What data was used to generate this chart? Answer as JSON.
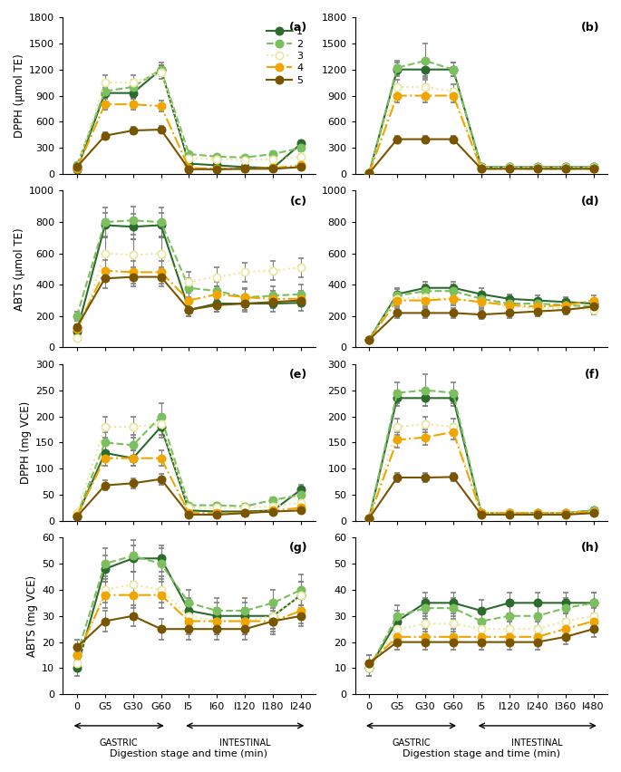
{
  "colors": {
    "1": "#2d6a2d",
    "2": "#7bbf5e",
    "3": "#e8e8a0",
    "4": "#f0a500",
    "5": "#7a5500"
  },
  "linestyles": {
    "1": "-",
    "2": "--",
    "3": ":",
    "4": "-.",
    "5": "-"
  },
  "xlabels_left": [
    "0",
    "G5",
    "G30",
    "G60",
    "I5",
    "I60",
    "I120",
    "I180",
    "I240"
  ],
  "xlabels_right": [
    "0",
    "G5",
    "G30",
    "G60",
    "I5",
    "I120",
    "I240",
    "I360",
    "I480"
  ],
  "panel_a": {
    "label": "(a)",
    "ylim": [
      0,
      1800
    ],
    "yticks": [
      0,
      300,
      600,
      900,
      1200,
      1500,
      1800
    ],
    "ylabel": "DPPH (μmol TE)",
    "series": {
      "1": [
        50,
        930,
        930,
        1200,
        120,
        100,
        80,
        70,
        350
      ],
      "2": [
        100,
        950,
        1000,
        1200,
        230,
        200,
        190,
        230,
        300
      ],
      "3": [
        70,
        1050,
        1050,
        1170,
        180,
        170,
        160,
        170,
        200
      ],
      "4": [
        60,
        800,
        800,
        780,
        70,
        60,
        60,
        70,
        100
      ],
      "5": [
        80,
        440,
        500,
        510,
        55,
        55,
        60,
        60,
        80
      ]
    },
    "errors": {
      "1": [
        10,
        60,
        60,
        50,
        15,
        10,
        10,
        10,
        40
      ],
      "2": [
        15,
        50,
        80,
        80,
        30,
        20,
        20,
        30,
        40
      ],
      "3": [
        15,
        80,
        80,
        80,
        20,
        20,
        20,
        20,
        30
      ],
      "4": [
        10,
        60,
        60,
        60,
        10,
        10,
        10,
        10,
        15
      ],
      "5": [
        10,
        40,
        40,
        40,
        10,
        10,
        10,
        10,
        15
      ]
    }
  },
  "panel_b": {
    "label": "(b)",
    "ylim": [
      0,
      1800
    ],
    "yticks": [
      0,
      300,
      600,
      900,
      1200,
      1500,
      1800
    ],
    "ylabel": "",
    "series": {
      "1": [
        10,
        1200,
        1200,
        1200,
        80,
        80,
        80,
        80,
        80
      ],
      "2": [
        10,
        1220,
        1300,
        1200,
        80,
        80,
        80,
        80,
        80
      ],
      "3": [
        10,
        1000,
        1000,
        950,
        70,
        70,
        70,
        70,
        70
      ],
      "4": [
        10,
        900,
        900,
        900,
        60,
        60,
        60,
        60,
        60
      ],
      "5": [
        10,
        400,
        400,
        400,
        60,
        60,
        60,
        60,
        60
      ]
    },
    "errors": {
      "1": [
        5,
        80,
        80,
        80,
        10,
        10,
        10,
        10,
        10
      ],
      "2": [
        5,
        80,
        200,
        80,
        10,
        10,
        10,
        10,
        10
      ],
      "3": [
        5,
        80,
        80,
        80,
        10,
        10,
        10,
        10,
        10
      ],
      "4": [
        5,
        80,
        80,
        80,
        10,
        10,
        10,
        10,
        10
      ],
      "5": [
        5,
        40,
        40,
        40,
        10,
        10,
        10,
        10,
        10
      ]
    }
  },
  "panel_c": {
    "label": "(c)",
    "ylim": [
      0,
      1000
    ],
    "yticks": [
      0,
      200,
      400,
      600,
      800,
      1000
    ],
    "ylabel": "ABTS (μmol TE)",
    "series": {
      "1": [
        100,
        780,
        770,
        780,
        240,
        280,
        280,
        280,
        285
      ],
      "2": [
        200,
        800,
        810,
        800,
        380,
        360,
        320,
        330,
        340
      ],
      "3": [
        60,
        600,
        590,
        600,
        420,
        450,
        480,
        490,
        510
      ],
      "4": [
        120,
        490,
        480,
        480,
        300,
        340,
        320,
        310,
        310
      ],
      "5": [
        130,
        440,
        450,
        450,
        240,
        270,
        280,
        290,
        300
      ]
    },
    "errors": {
      "1": [
        20,
        80,
        80,
        80,
        40,
        50,
        50,
        50,
        50
      ],
      "2": [
        30,
        90,
        90,
        90,
        60,
        60,
        60,
        60,
        60
      ],
      "3": [
        15,
        100,
        100,
        100,
        60,
        60,
        60,
        60,
        60
      ],
      "4": [
        20,
        70,
        70,
        70,
        50,
        50,
        50,
        50,
        50
      ],
      "5": [
        20,
        60,
        60,
        60,
        40,
        40,
        40,
        40,
        40
      ]
    }
  },
  "panel_d": {
    "label": "(d)",
    "ylim": [
      0,
      1000
    ],
    "yticks": [
      0,
      200,
      400,
      600,
      800,
      1000
    ],
    "ylabel": "",
    "series": {
      "1": [
        50,
        340,
        380,
        380,
        340,
        310,
        300,
        290,
        280
      ],
      "2": [
        50,
        330,
        360,
        360,
        310,
        280,
        280,
        270,
        260
      ],
      "3": [
        50,
        310,
        320,
        310,
        290,
        260,
        250,
        250,
        240
      ],
      "4": [
        50,
        300,
        300,
        310,
        290,
        270,
        260,
        270,
        300
      ],
      "5": [
        50,
        220,
        220,
        220,
        210,
        220,
        230,
        240,
        260
      ]
    },
    "errors": {
      "1": [
        10,
        40,
        40,
        40,
        40,
        30,
        30,
        30,
        30
      ],
      "2": [
        10,
        40,
        40,
        40,
        40,
        30,
        30,
        30,
        30
      ],
      "3": [
        10,
        30,
        30,
        30,
        30,
        30,
        30,
        30,
        30
      ],
      "4": [
        10,
        40,
        40,
        40,
        40,
        30,
        30,
        30,
        30
      ],
      "5": [
        10,
        30,
        30,
        30,
        30,
        30,
        30,
        30,
        30
      ]
    }
  },
  "panel_e": {
    "label": "(e)",
    "ylim": [
      0,
      300
    ],
    "yticks": [
      0,
      50,
      100,
      150,
      200,
      250,
      300
    ],
    "ylabel": "DPPH (mg VCE)",
    "series": {
      "1": [
        8,
        130,
        120,
        180,
        20,
        18,
        18,
        20,
        60
      ],
      "2": [
        10,
        150,
        145,
        200,
        30,
        30,
        28,
        40,
        50
      ],
      "3": [
        15,
        180,
        180,
        185,
        25,
        25,
        25,
        28,
        35
      ],
      "4": [
        10,
        120,
        120,
        120,
        15,
        15,
        15,
        20,
        25
      ],
      "5": [
        8,
        68,
        72,
        80,
        12,
        12,
        15,
        18,
        20
      ]
    },
    "errors": {
      "1": [
        3,
        15,
        15,
        20,
        5,
        5,
        5,
        5,
        10
      ],
      "2": [
        3,
        20,
        20,
        25,
        5,
        5,
        5,
        5,
        8
      ],
      "3": [
        3,
        20,
        20,
        20,
        5,
        5,
        5,
        5,
        8
      ],
      "4": [
        3,
        15,
        15,
        15,
        3,
        3,
        3,
        3,
        5
      ],
      "5": [
        3,
        10,
        10,
        10,
        3,
        3,
        3,
        3,
        5
      ]
    }
  },
  "panel_f": {
    "label": "(f)",
    "ylim": [
      0,
      300
    ],
    "yticks": [
      0,
      50,
      100,
      150,
      200,
      250,
      300
    ],
    "ylabel": "",
    "series": {
      "1": [
        5,
        235,
        235,
        235,
        15,
        15,
        15,
        15,
        20
      ],
      "2": [
        5,
        245,
        250,
        245,
        15,
        15,
        15,
        15,
        20
      ],
      "3": [
        5,
        180,
        185,
        180,
        15,
        15,
        15,
        15,
        18
      ],
      "4": [
        5,
        155,
        160,
        170,
        15,
        15,
        15,
        15,
        18
      ],
      "5": [
        5,
        83,
        83,
        84,
        12,
        12,
        12,
        12,
        15
      ]
    },
    "errors": {
      "1": [
        2,
        15,
        15,
        15,
        3,
        3,
        3,
        3,
        5
      ],
      "2": [
        2,
        20,
        30,
        20,
        3,
        3,
        3,
        3,
        5
      ],
      "3": [
        2,
        15,
        15,
        15,
        3,
        3,
        3,
        3,
        5
      ],
      "4": [
        2,
        15,
        15,
        15,
        3,
        3,
        3,
        3,
        5
      ],
      "5": [
        2,
        8,
        8,
        8,
        3,
        3,
        3,
        3,
        4
      ]
    }
  },
  "panel_g": {
    "label": "(g)",
    "ylim": [
      0,
      60
    ],
    "yticks": [
      0,
      10,
      20,
      30,
      40,
      50,
      60
    ],
    "ylabel": "ABTS (mg VCE)",
    "series": {
      "1": [
        10,
        48,
        52,
        52,
        32,
        30,
        30,
        30,
        38
      ],
      "2": [
        15,
        50,
        53,
        50,
        35,
        32,
        32,
        35,
        40
      ],
      "3": [
        12,
        40,
        42,
        40,
        30,
        28,
        28,
        30,
        38
      ],
      "4": [
        15,
        38,
        38,
        38,
        28,
        28,
        28,
        28,
        32
      ],
      "5": [
        18,
        28,
        30,
        25,
        25,
        25,
        25,
        28,
        30
      ]
    },
    "errors": {
      "1": [
        3,
        5,
        5,
        5,
        5,
        5,
        5,
        5,
        5
      ],
      "2": [
        3,
        6,
        6,
        6,
        5,
        5,
        5,
        5,
        6
      ],
      "3": [
        3,
        5,
        5,
        5,
        5,
        5,
        5,
        5,
        5
      ],
      "4": [
        3,
        5,
        5,
        5,
        5,
        5,
        5,
        5,
        5
      ],
      "5": [
        3,
        4,
        4,
        4,
        4,
        4,
        4,
        4,
        4
      ]
    }
  },
  "panel_h": {
    "label": "(h)",
    "ylim": [
      0,
      60
    ],
    "yticks": [
      0,
      10,
      20,
      30,
      40,
      50,
      60
    ],
    "ylabel": "",
    "series": {
      "1": [
        10,
        28,
        35,
        35,
        32,
        35,
        35,
        35,
        35
      ],
      "2": [
        10,
        30,
        33,
        33,
        28,
        30,
        30,
        33,
        35
      ],
      "3": [
        10,
        25,
        27,
        27,
        25,
        25,
        25,
        28,
        30
      ],
      "4": [
        12,
        22,
        22,
        22,
        22,
        22,
        22,
        25,
        28
      ],
      "5": [
        12,
        20,
        20,
        20,
        20,
        20,
        20,
        22,
        25
      ]
    },
    "errors": {
      "1": [
        3,
        4,
        4,
        4,
        4,
        4,
        4,
        4,
        4
      ],
      "2": [
        3,
        4,
        4,
        4,
        4,
        4,
        4,
        4,
        4
      ],
      "3": [
        3,
        3,
        3,
        3,
        3,
        3,
        3,
        3,
        3
      ],
      "4": [
        3,
        3,
        3,
        3,
        3,
        3,
        3,
        3,
        3
      ],
      "5": [
        3,
        3,
        3,
        3,
        3,
        3,
        3,
        3,
        3
      ]
    }
  }
}
